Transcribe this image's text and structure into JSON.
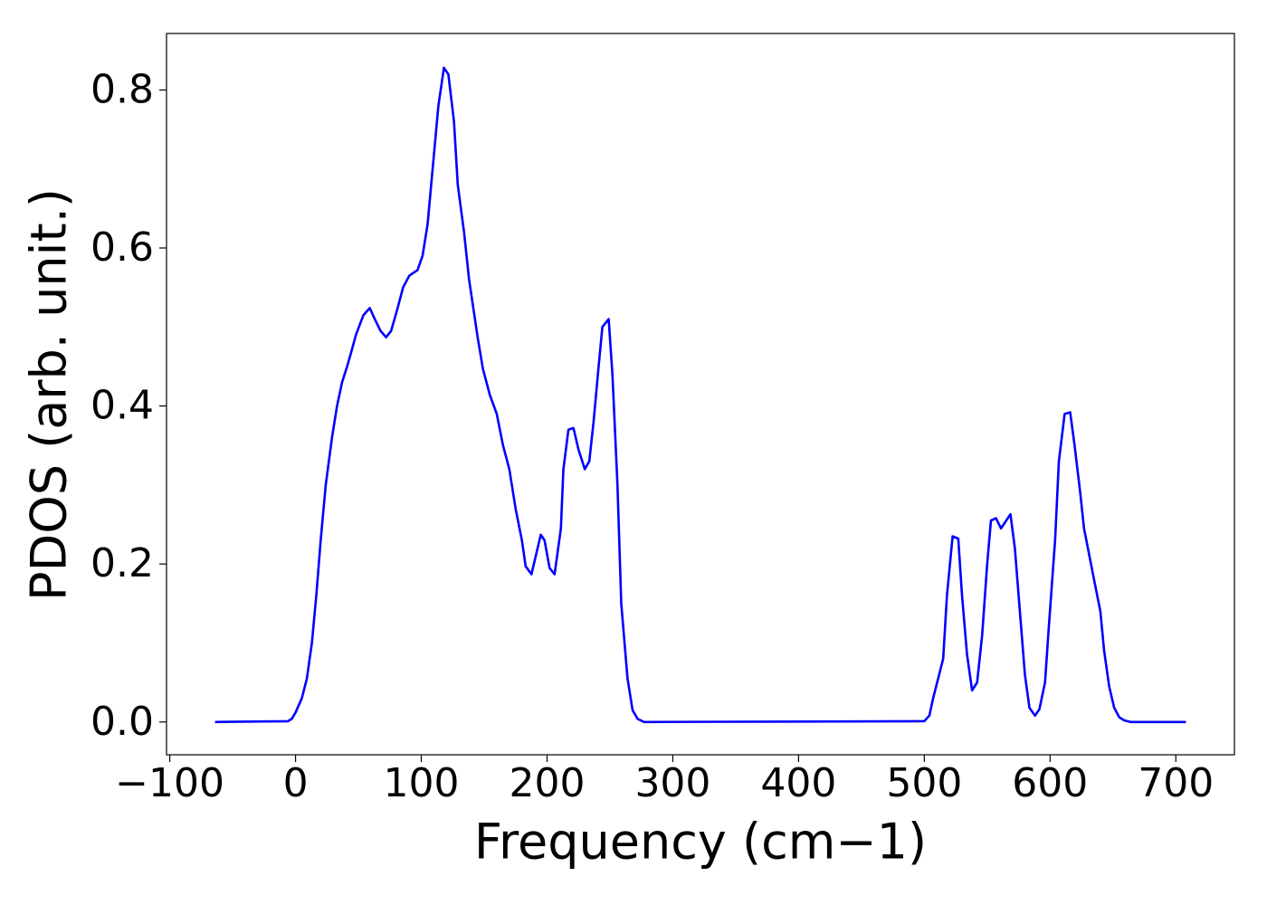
{
  "chart_data": {
    "type": "line",
    "xlabel": "Frequency (cm−1)",
    "ylabel": "PDOS (arb. unit.)",
    "color": "#0000ff",
    "x": [
      -64,
      -6,
      -3,
      0,
      5,
      9,
      13,
      16.5,
      20,
      24,
      29,
      33,
      37,
      41,
      44.6,
      48,
      54,
      59,
      63,
      67.6,
      72,
      76,
      80.5,
      85.5,
      90.5,
      97,
      101,
      105,
      109,
      113.6,
      118,
      121.5,
      126,
      129,
      134,
      138,
      145,
      149,
      154.5,
      160,
      165,
      170,
      175,
      180,
      183,
      187.6,
      195,
      198,
      202,
      206,
      211,
      213,
      217,
      221,
      225,
      230,
      233.6,
      237,
      241,
      244,
      249,
      252,
      256,
      259,
      264,
      268,
      272,
      277,
      500,
      504,
      507,
      515,
      518,
      522.5,
      527,
      530,
      534,
      538,
      542,
      546,
      550,
      553,
      557,
      561,
      568.5,
      572,
      576,
      580,
      583.6,
      588,
      591.5,
      596,
      599,
      604,
      607,
      611.6,
      616,
      619.5,
      624,
      627,
      635,
      640,
      643,
      647,
      651,
      655,
      659,
      664,
      708
    ],
    "values": [
      0,
      0.001,
      0.004,
      0.012,
      0.03,
      0.055,
      0.1,
      0.16,
      0.23,
      0.3,
      0.36,
      0.4,
      0.43,
      0.45,
      0.47,
      0.49,
      0.515,
      0.524,
      0.51,
      0.495,
      0.487,
      0.495,
      0.52,
      0.55,
      0.565,
      0.572,
      0.59,
      0.63,
      0.7,
      0.78,
      0.828,
      0.82,
      0.76,
      0.68,
      0.62,
      0.56,
      0.485,
      0.447,
      0.414,
      0.39,
      0.35,
      0.32,
      0.27,
      0.23,
      0.197,
      0.187,
      0.237,
      0.23,
      0.195,
      0.187,
      0.245,
      0.32,
      0.37,
      0.372,
      0.345,
      0.32,
      0.33,
      0.38,
      0.45,
      0.5,
      0.51,
      0.44,
      0.3,
      0.15,
      0.055,
      0.015,
      0.004,
      0,
      0.001,
      0.008,
      0.03,
      0.08,
      0.16,
      0.235,
      0.232,
      0.16,
      0.085,
      0.04,
      0.05,
      0.11,
      0.2,
      0.255,
      0.258,
      0.245,
      0.263,
      0.22,
      0.14,
      0.06,
      0.018,
      0.008,
      0.016,
      0.05,
      0.12,
      0.23,
      0.33,
      0.39,
      0.392,
      0.35,
      0.29,
      0.245,
      0.18,
      0.14,
      0.09,
      0.045,
      0.018,
      0.006,
      0.002,
      0,
      0
    ],
    "xlim": [
      -102.6,
      746.6
    ],
    "ylim": [
      -0.0415,
      0.8715
    ],
    "xticks": [
      {
        "value": -100,
        "label": "−100"
      },
      0,
      100,
      200,
      300,
      400,
      500,
      600,
      700
    ],
    "yticks": [
      {
        "value": 0,
        "label": "0.0"
      },
      0.2,
      0.4,
      0.6,
      0.8
    ]
  }
}
